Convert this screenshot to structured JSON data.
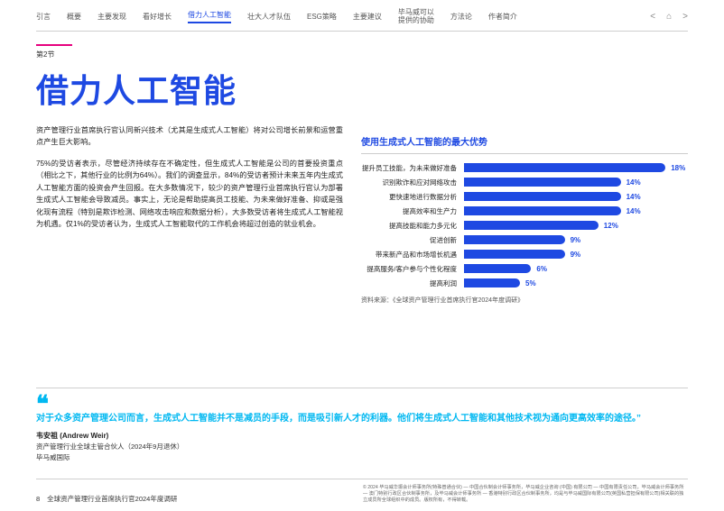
{
  "nav": {
    "items": [
      "引言",
      "概要",
      "主要发现",
      "看好增长",
      "借力人工智能",
      "壮大人才队伍",
      "ESG策略",
      "主要建议",
      "毕马威可以\n提供的协助",
      "方法论",
      "作者简介"
    ],
    "active_index": 4
  },
  "section": {
    "label": "第2节",
    "accent_color": "#E6007E",
    "title": "借力人工智能",
    "title_color": "#1E49E2"
  },
  "body": {
    "p1": "资产管理行业首席执行官认同新兴技术（尤其是生成式人工智能）将对公司增长前景和运营重点产生巨大影响。",
    "p2": "75%的受访者表示，尽管经济持续存在不确定性，但生成式人工智能是公司的首要投资重点（相比之下，其他行业的比例为64%）。我们的调查显示，84%的受访者预计未来五年内生成式人工智能方面的投资会产生回报。在大多数情况下，较少的资产管理行业首席执行官认为部署生成式人工智能会导致减员。事实上，无论是帮助提高员工技能、为未来做好准备、抑或是强化现有流程（特别是欺诈检测、网络攻击响应和数据分析），大多数受访者将生成式人工智能视为机遇。仅1%的受访者认为，生成式人工智能取代的工作机会将超过创造的就业机会。"
  },
  "chart": {
    "title": "使用生成式人工智能的最大优势",
    "title_color": "#1E49E2",
    "bar_color": "#1E49E2",
    "value_color": "#1E49E2",
    "max_pct": 20,
    "items": [
      {
        "label": "提升员工技能，为未来做好准备",
        "value": 18
      },
      {
        "label": "识别欺诈和应对网络攻击",
        "value": 14
      },
      {
        "label": "更快速地进行数据分析",
        "value": 14
      },
      {
        "label": "提高效率和生产力",
        "value": 14
      },
      {
        "label": "提高技能和能力多元化",
        "value": 12
      },
      {
        "label": "促进创新",
        "value": 9
      },
      {
        "label": "带来新产品和市场增长机遇",
        "value": 9
      },
      {
        "label": "提高服务/客户参与个性化程度",
        "value": 6
      },
      {
        "label": "提高利润",
        "value": 5
      }
    ],
    "source": "资料来源：《全球资产管理行业首席执行官2024年度调研》"
  },
  "quote": {
    "mark_color": "#00B8F1",
    "text_color": "#00B8F1",
    "text": "对于众多资产管理公司而言，生成式人工智能并不是减员的手段，而是吸引新人才的利器。他们将生成式人工智能和其他技术视为通向更高效率的途径。”",
    "author": "韦安祖 (Andrew Weir)",
    "role": "资产管理行业全球主管合伙人（2024年9月退休）",
    "org": "毕马威国际"
  },
  "footer": {
    "page": "8",
    "doc_title": "全球资产管理行业首席执行官2024年度调研",
    "copyright": "© 2024 毕马威华振会计师事务所(特殊普通合伙) — 中国合伙制会计师事务所，毕马威企业咨询 (中国) 有限公司 — 中国有限责任公司，毕马威会计师事务所 — 澳门特别行政区合伙制事务所，及毕马威会计师事务所 — 香港特别行政区合伙制事务所，均是与毕马威国际有限公司(英国私营担保有限公司)相关联的独立成员所全球组织中的成员。版权所有，不得转载。"
  }
}
